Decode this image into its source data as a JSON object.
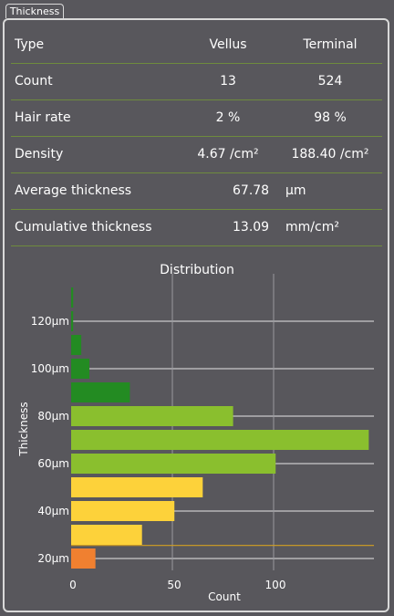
{
  "panel": {
    "title": "Thickness"
  },
  "table": {
    "header": {
      "label": "Type",
      "col1": "Vellus",
      "col2": "Terminal"
    },
    "count": {
      "label": "Count",
      "col1": "13",
      "col2": "524"
    },
    "hair_rate": {
      "label": "Hair rate",
      "col1": "2 %",
      "col2": "98 %"
    },
    "density": {
      "label": "Density",
      "col1": "4.67 /cm²",
      "col2": "188.40 /cm²"
    },
    "average_thickness": {
      "label": "Average thickness",
      "value": "67.78",
      "unit": "μm"
    },
    "cumulative_thickness": {
      "label": "Cumulative thickness",
      "value": "13.09",
      "unit": "mm/cm²"
    }
  },
  "colors": {
    "background": "#58575c",
    "text": "#ffffff",
    "row_divider": "#6e8b3d",
    "grid": "#e6e6e6",
    "threshold_line": "#d4a020"
  },
  "chart_data": {
    "type": "bar",
    "orientation": "horizontal",
    "title": "Distribution",
    "xlabel": "Count",
    "ylabel": "Thickness",
    "xlim": [
      0,
      147
    ],
    "x_ticks": [
      0,
      50,
      100
    ],
    "x_tick_labels": [
      "0",
      "50",
      "100"
    ],
    "y_tick_labels": [
      "20μm",
      "40μm",
      "60μm",
      "80μm",
      "100μm",
      "120μm"
    ],
    "ylim": [
      15,
      135
    ],
    "grid": true,
    "threshold_line_y": 25.5,
    "bars": [
      {
        "y": 20,
        "value": 12,
        "color": "#f08030"
      },
      {
        "y": 30,
        "value": 35,
        "color": "#fdd23a"
      },
      {
        "y": 40,
        "value": 51,
        "color": "#fdd23a"
      },
      {
        "y": 50,
        "value": 65,
        "color": "#fdd23a"
      },
      {
        "y": 60,
        "value": 101,
        "color": "#8abf2e"
      },
      {
        "y": 70,
        "value": 147,
        "color": "#8abf2e"
      },
      {
        "y": 80,
        "value": 80,
        "color": "#8abf2e"
      },
      {
        "y": 90,
        "value": 29,
        "color": "#238b22"
      },
      {
        "y": 100,
        "value": 9,
        "color": "#238b22"
      },
      {
        "y": 110,
        "value": 5,
        "color": "#238b22"
      },
      {
        "y": 120,
        "value": 1,
        "color": "#238b22"
      },
      {
        "y": 130,
        "value": 1,
        "color": "#238b22"
      }
    ]
  }
}
